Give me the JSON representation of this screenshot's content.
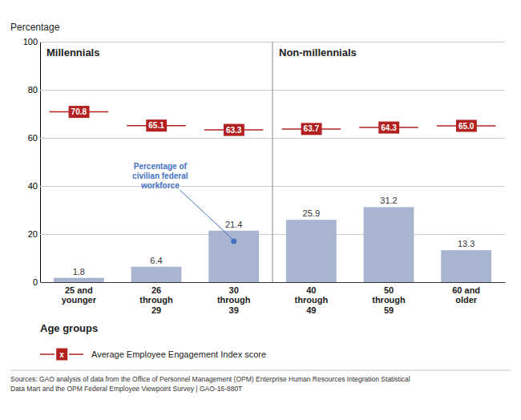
{
  "chart_data": {
    "type": "bar",
    "categories": [
      "25 and\nyounger",
      "26\nthrough\n29",
      "30\nthrough\n39",
      "40\nthrough\n49",
      "50\nthrough\n59",
      "60 and\nolder"
    ],
    "series": [
      {
        "type": "bar",
        "color": "#a8b4d0",
        "values": [
          1.8,
          6.4,
          21.4,
          25.9,
          31.2,
          13.3
        ]
      },
      {
        "name": "Average Employee Engagement Index score",
        "type": "scatter",
        "marker": "dash",
        "color": "#b22020",
        "values": [
          70.8,
          65.1,
          63.3,
          63.7,
          64.3,
          65.0
        ],
        "value_labels": [
          "70.8",
          "65.1",
          "63.3",
          "63.7",
          "64.3",
          "65.0"
        ]
      }
    ],
    "groups": [
      {
        "label": "Millennials",
        "categories": [
          "25 and\nyounger",
          "26\nthrough\n29",
          "30\nthrough\n39"
        ]
      },
      {
        "label": "Non-millennials",
        "categories": [
          "40\nthrough\n49",
          "50\nthrough\n59",
          "60 and\nolder"
        ]
      }
    ],
    "annotations": [
      {
        "text": "Percentage of\ncivilian federal\nworkforce",
        "category": "30\nthrough\n39",
        "value": 17.0,
        "color": "#4472c4"
      }
    ],
    "y_label": "Percentage",
    "x_label": "Age groups",
    "legend_marker_text": "x",
    "source": "Sources: GAO analysis of data from the Office of Personnel Management (OPM) Enterprise Human Resources Integration Statistical\nData Mart and the OPM Federal Employee Viewpoint Survey  |  GAO-16-880T",
    "ylim": [
      0,
      100
    ],
    "yticks": [
      0,
      20,
      40,
      60,
      80,
      100
    ],
    "grid": true,
    "data_labels": true,
    "legend": "bottom"
  }
}
